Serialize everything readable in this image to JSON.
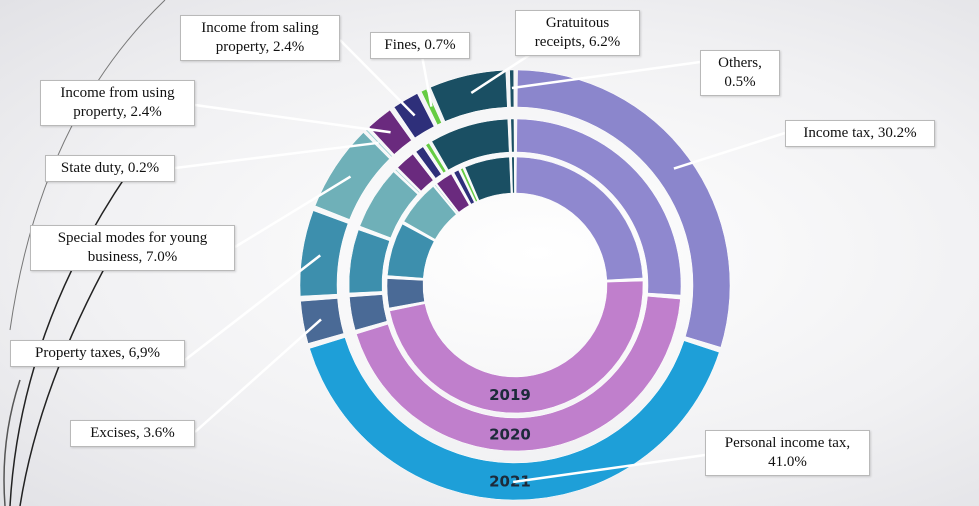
{
  "chart_data": {
    "type": "donut",
    "categories": [
      "Income tax, 30.2%",
      "Personal income tax, 41.0%",
      "Excises, 3.6%",
      "Property taxes, 6,9%",
      "Special modes for young business, 7.0%",
      "State duty, 0.2%",
      "Income from using property, 2.4%",
      "Income from saling property, 2.4%",
      "Fines, 0.7%",
      "Gratuitous receipts, 6.2%",
      "Others, 0.5%"
    ],
    "series": [
      {
        "name": "2019",
        "values": [
          24,
          47,
          4,
          7,
          6,
          0.2,
          2.5,
          1,
          0.5,
          6,
          0.5
        ],
        "colors": [
          "#8f88cf",
          "#c07fcc",
          "#4a6a96",
          "#3d8fad",
          "#6fb0b8",
          "#a9d3d6",
          "#6a2a7e",
          "#2e2f7a",
          "#66cc44",
          "#1a4f63",
          "#1a4f63"
        ]
      },
      {
        "name": "2020",
        "values": [
          26,
          44,
          3.6,
          6.5,
          6.5,
          0.2,
          2.3,
          1.2,
          0.6,
          8,
          0.5
        ],
        "colors": [
          "#8f88cf",
          "#c07fcc",
          "#4a6a96",
          "#3d8fad",
          "#6fb0b8",
          "#a9d3d6",
          "#6a2a7e",
          "#2e2f7a",
          "#66cc44",
          "#1a4f63",
          "#1a4f63"
        ]
      },
      {
        "name": "2021",
        "values": [
          30.2,
          41.0,
          3.6,
          6.9,
          7.0,
          0.2,
          2.4,
          2.4,
          0.7,
          6.2,
          0.5
        ],
        "colors": [
          "#8b86cc",
          "#1e9fd8",
          "#4a6a96",
          "#3d8fad",
          "#6fb0b8",
          "#a9d3d6",
          "#6a2a7e",
          "#2e2f7a",
          "#66cc44",
          "#1a4f63",
          "#1a4f63"
        ]
      }
    ]
  }
}
